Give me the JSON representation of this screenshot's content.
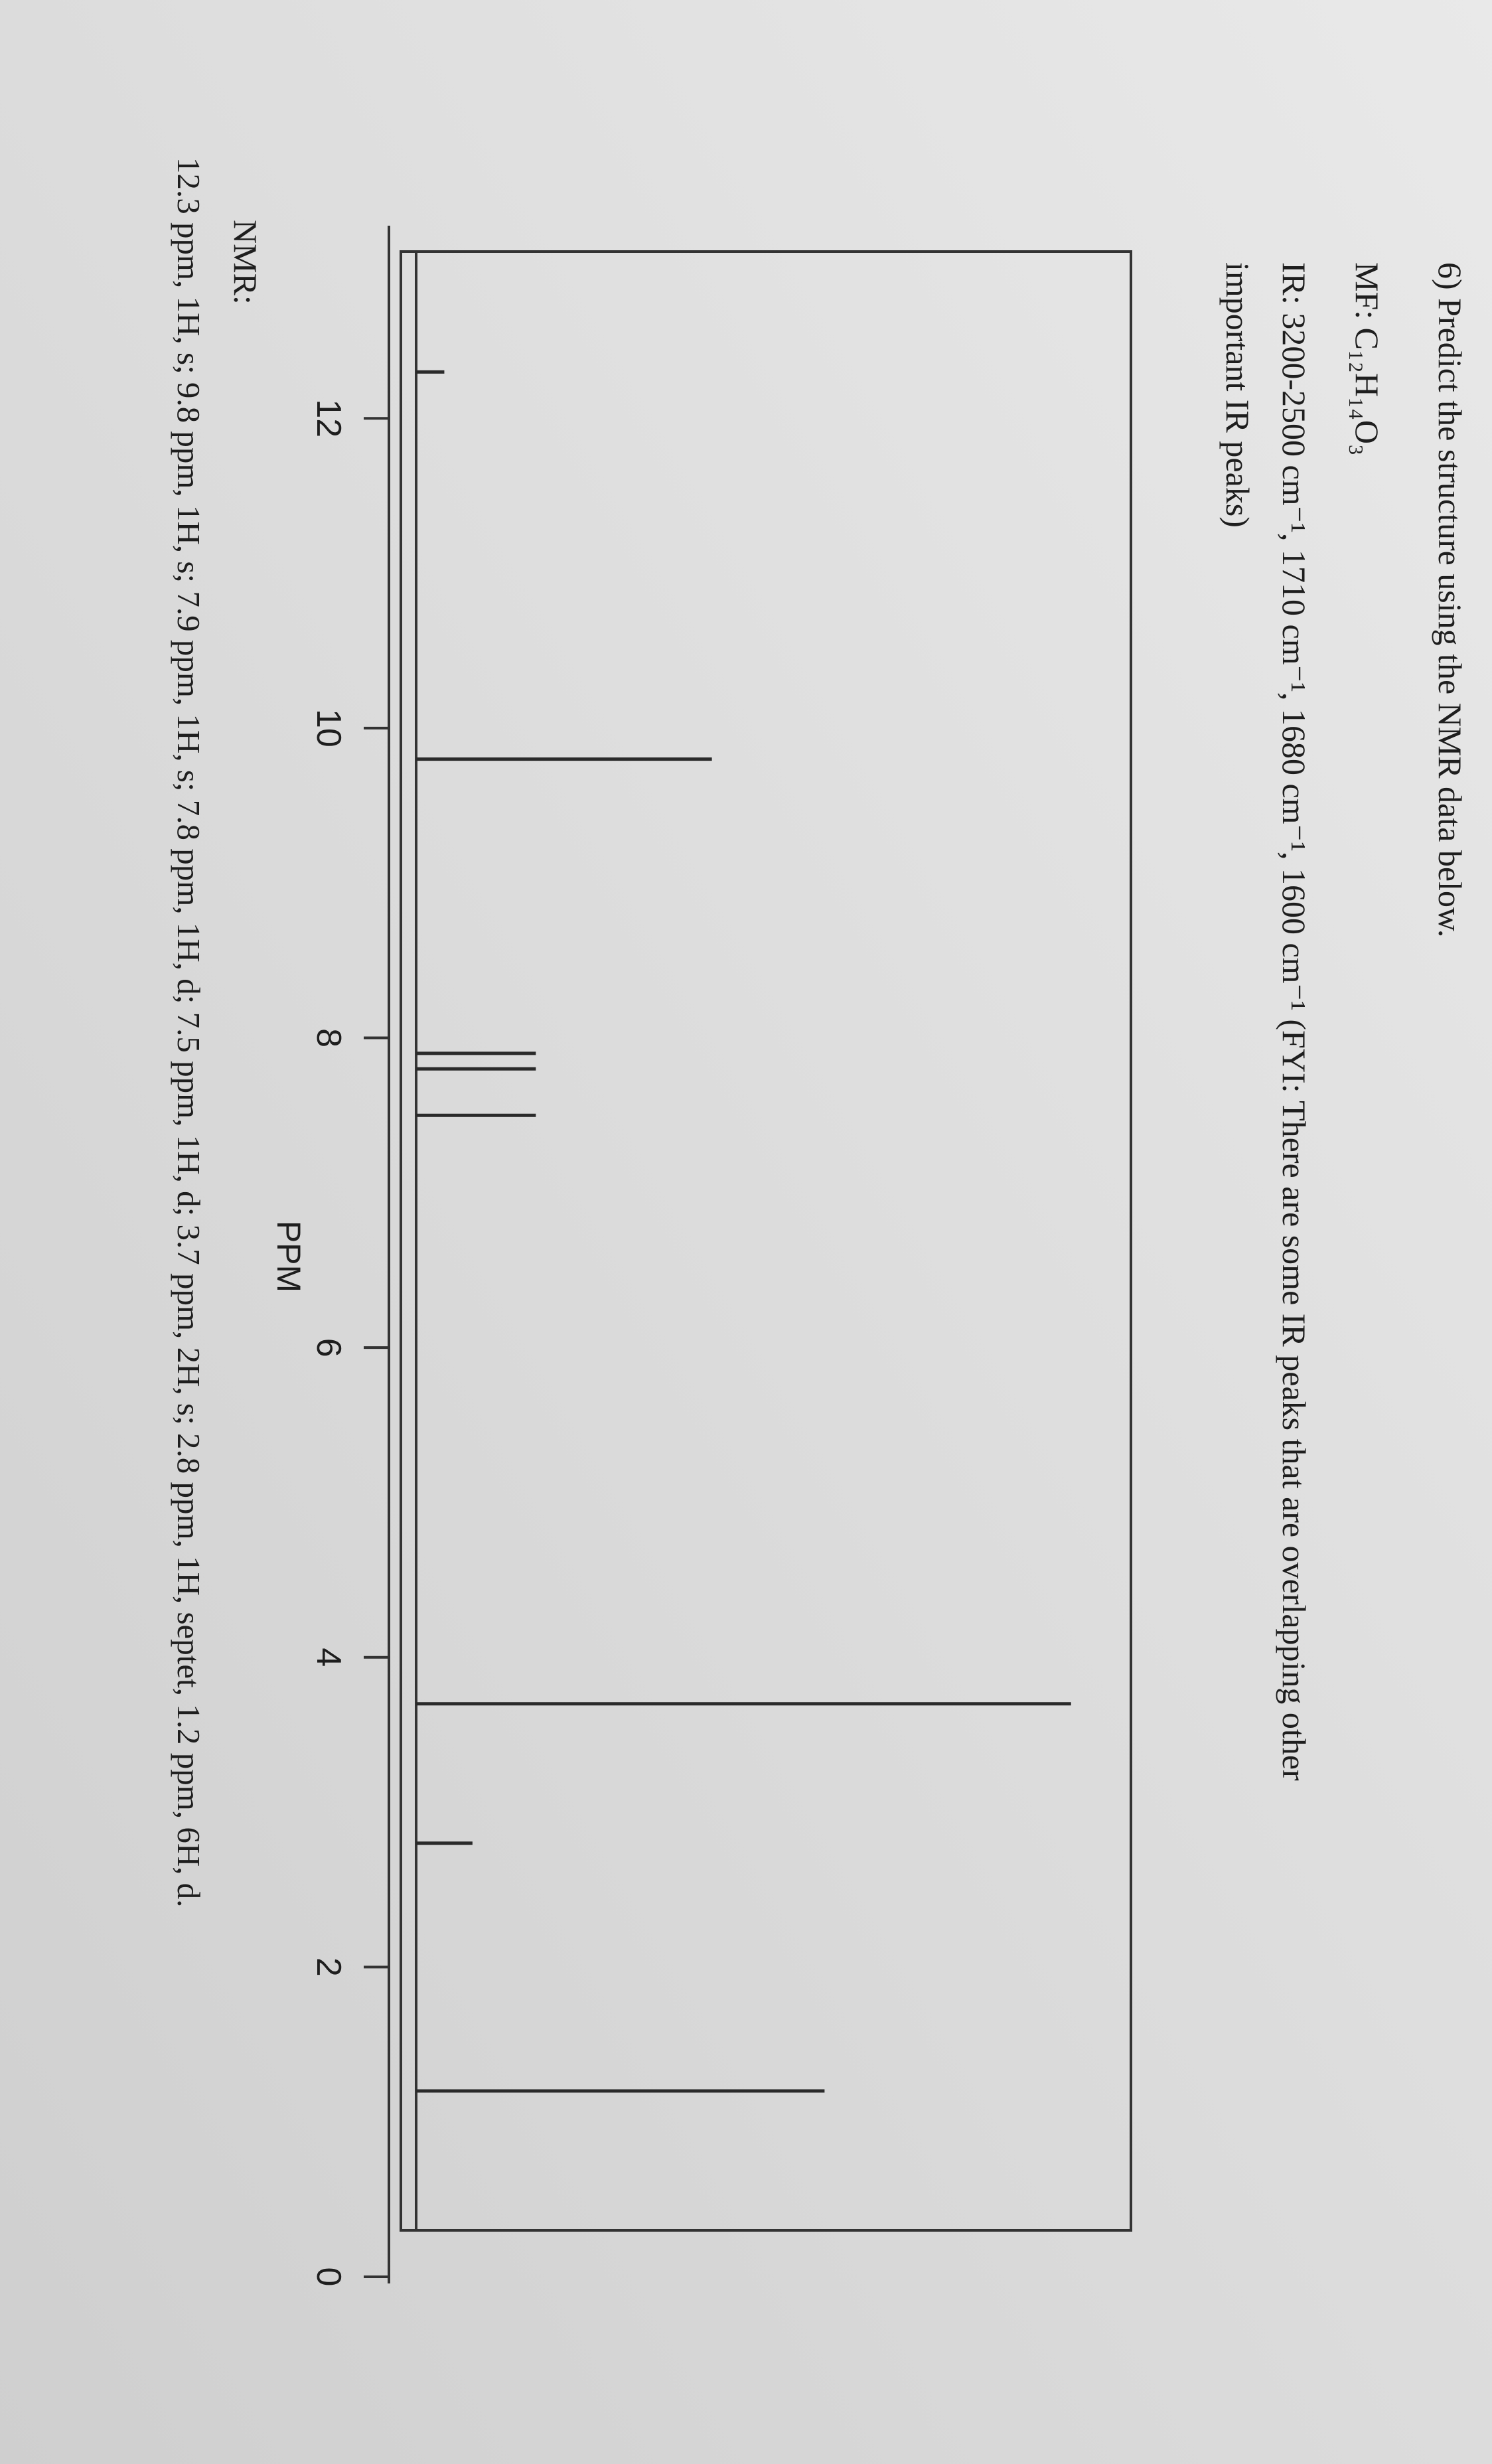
{
  "question": "6) Predict the structure using the NMR data below.",
  "mf": "MF:  C₁₂H₁₄O₃",
  "ir_line1": "IR: 3200-2500 cm⁻¹, 1710 cm⁻¹, 1680 cm⁻¹, 1600 cm⁻¹ (FYI: There are some IR peaks that are overlapping other",
  "ir_line2": "important IR peaks)",
  "nmr_label": "NMR:",
  "nmr_data": "12.3 ppm, 1H, s; 9.8 ppm, 1H, s; 7.9 ppm, 1H, s; 7.8 ppm, 1H, d; 7.5 ppm, 1H, d; 3.7 ppm, 2H, s; 2.8 ppm, 1H, septet, 1.2 ppm, 6H, d.",
  "chart_data": {
    "type": "stem",
    "xlabel": "PPM",
    "x": [
      12.3,
      9.8,
      7.9,
      7.8,
      7.5,
      3.7,
      2.8,
      1.2
    ],
    "values": [
      4,
      42,
      17,
      17,
      17,
      93,
      8,
      58
    ],
    "color": "#2a2a2a",
    "xlim": [
      13,
      0
    ],
    "xticks": [
      12,
      10,
      8,
      6,
      4,
      2,
      0
    ],
    "ylim": [
      0,
      100
    ]
  }
}
